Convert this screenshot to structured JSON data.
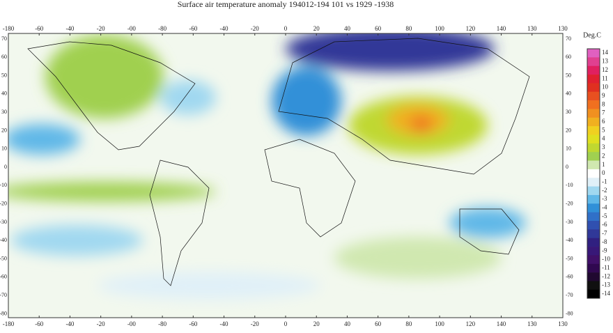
{
  "map": {
    "title": "Surface air temperature anomaly  194012-194 101 vs 1929 -1938",
    "x_tick_labels": [
      "-180",
      "-60",
      "-40",
      "-20",
      "-00",
      "-80",
      "-60",
      "-40",
      "-20",
      "0",
      "20",
      "40",
      "60",
      "80",
      "100",
      "120",
      "140",
      "130",
      "130"
    ],
    "y_tick_labels": [
      "70",
      "60",
      "50",
      "40",
      "30",
      "20",
      "10",
      "0",
      "-10",
      "-20",
      "-30",
      "-40",
      "-50",
      "-60",
      "-70",
      "-80"
    ],
    "colorbar": {
      "title": "Deg.C",
      "labels": [
        14,
        13,
        12,
        11,
        10,
        9,
        8,
        7,
        6,
        5,
        4,
        3,
        2,
        1,
        0,
        -1,
        -2,
        -3,
        -4,
        -5,
        -6,
        -7,
        -8,
        -9,
        -10,
        -11,
        -12,
        -13,
        -14
      ],
      "colors": [
        "#e060c0",
        "#e04090",
        "#e02060",
        "#e02030",
        "#e03020",
        "#e85020",
        "#f07020",
        "#f09020",
        "#f0b020",
        "#f0d020",
        "#e0e020",
        "#c0d830",
        "#a0d050",
        "#d0e8b0",
        "#ffffff",
        "#e0f0f8",
        "#a0d8f0",
        "#60b8e8",
        "#3090d8",
        "#3070c8",
        "#3050b0",
        "#303898",
        "#302080",
        "#381878",
        "#401068",
        "#300850",
        "#200830",
        "#101010",
        "#000000"
      ]
    }
  }
}
